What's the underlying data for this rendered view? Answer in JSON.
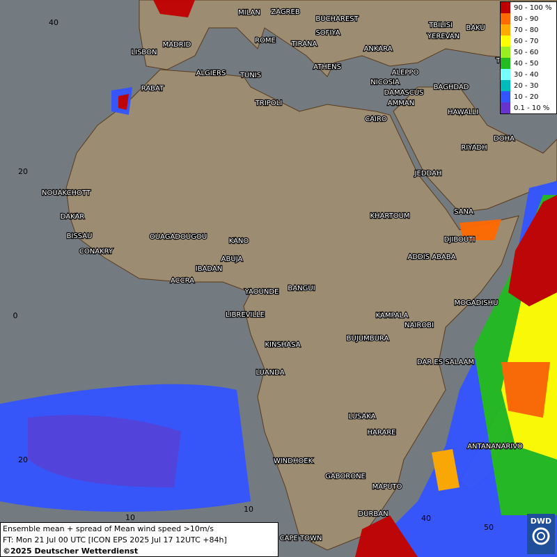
{
  "cities": [
    "MILAN",
    "ZAGREB",
    "BUCHAREST",
    "SOFIYA",
    "TBILISI",
    "BAKU",
    "YEREVAN",
    "MADRID",
    "ROME",
    "TIRANA",
    "ANKARA",
    "LISBON",
    "TEHRA",
    "ATHENS",
    "ALGIERS",
    "TUNIS",
    "ALEPPO",
    "RABAT",
    "NICOSIA",
    "BAGHDAD",
    "DAMASCUS",
    "TRIPOLI",
    "AMMAN",
    "CAIRO",
    "HAWALLI",
    "DOHA",
    "RIYADH",
    "JEDDAH",
    "NOUAKCHOTT",
    "SANA",
    "KHARTOUM",
    "DAKAR",
    "BISSAU",
    "DJIBOUTI",
    "OUAGADOUGOU",
    "KANO",
    "CONAKRY",
    "ABUJA",
    "ADDIS ABABA",
    "IBADAN",
    "ACCRA",
    "YAOUNDE",
    "BANGUI",
    "MOGADISHU",
    "LIBREVILLE",
    "KAMPALA",
    "NAIROBI",
    "BUJUMBURA",
    "KINSHASA",
    "DAR ES SALAAM",
    "LUANDA",
    "LUSAKA",
    "HARARE",
    "ANTANANARIVO",
    "WINDHOEK",
    "GABORONE",
    "MAPUTO",
    "DURBAN",
    "CAPE TOWN"
  ],
  "grid_labels": [
    "40",
    "20",
    "0",
    "20",
    "10",
    "10",
    "40",
    "50"
  ],
  "legend": [
    {
      "label": "90 - 100 %",
      "color": "#c00000"
    },
    {
      "label": "80 - 90",
      "color": "#ff6a00"
    },
    {
      "label": "70 - 80",
      "color": "#ffaa00"
    },
    {
      "label": "60 - 70",
      "color": "#ffff00"
    },
    {
      "label": "50 - 60",
      "color": "#99ee22"
    },
    {
      "label": "40 - 50",
      "color": "#22bb22"
    },
    {
      "label": "30 - 40",
      "color": "#77ffff"
    },
    {
      "label": "20 - 30",
      "color": "#00bbbb"
    },
    {
      "label": "10 - 20",
      "color": "#3355ff"
    },
    {
      "label": "0.1 - 10 %",
      "color": "#6633cc"
    }
  ],
  "footer": {
    "line1": "Ensemble mean + spread of Mean wind speed >10m/s",
    "line2": "FT: Mon 21 Jul 00 UTC [ICON EPS 2025 Jul 17 12UTC +84h]",
    "line3": "©2025 Deutscher Wetterdienst"
  },
  "logo": "DWD"
}
